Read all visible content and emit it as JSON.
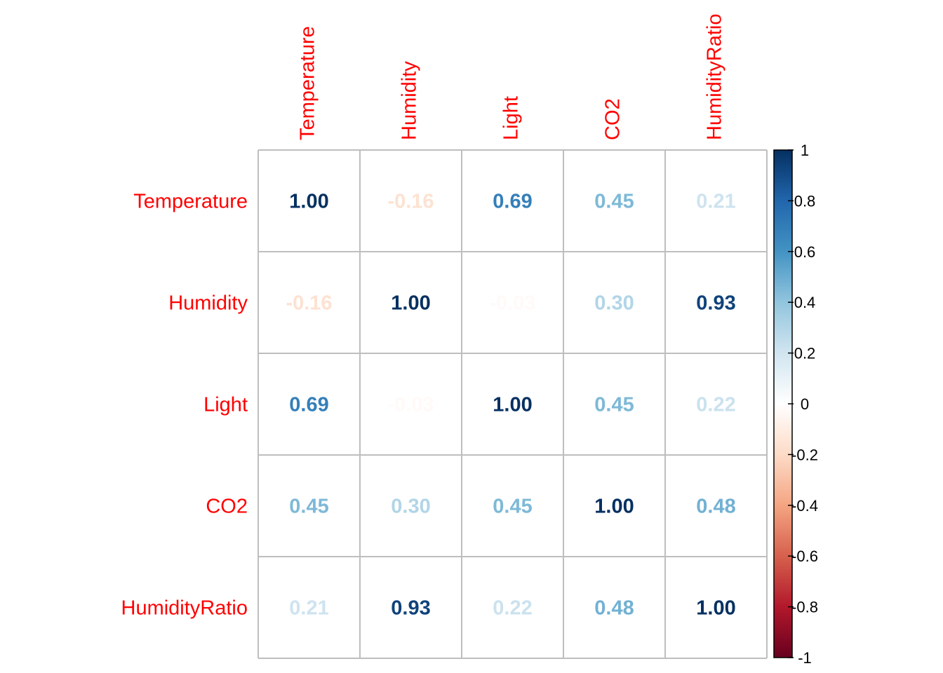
{
  "chart_data": {
    "type": "heatmap",
    "variables": [
      "Temperature",
      "Humidity",
      "Light",
      "CO2",
      "HumidityRatio"
    ],
    "matrix": [
      [
        1.0,
        -0.16,
        0.69,
        0.45,
        0.21
      ],
      [
        -0.16,
        1.0,
        -0.03,
        0.3,
        0.93
      ],
      [
        0.69,
        -0.03,
        1.0,
        0.45,
        0.22
      ],
      [
        0.45,
        0.3,
        0.45,
        1.0,
        0.48
      ],
      [
        0.21,
        0.93,
        0.22,
        0.48,
        1.0
      ]
    ],
    "value_labels": [
      [
        "1.00",
        "-0.16",
        "0.69",
        "0.45",
        "0.21"
      ],
      [
        "-0.16",
        "1.00",
        "-0.03",
        "0.30",
        "0.93"
      ],
      [
        "0.69",
        "-0.03",
        "1.00",
        "0.45",
        "0.22"
      ],
      [
        "0.45",
        "0.30",
        "0.45",
        "1.00",
        "0.48"
      ],
      [
        "0.21",
        "0.93",
        "0.22",
        "0.48",
        "1.00"
      ]
    ],
    "colorbar": {
      "range": [
        -1,
        1
      ],
      "ticks": [
        "1",
        "0.8",
        "0.6",
        "0.4",
        "0.2",
        "0",
        "-0.2",
        "-0.4",
        "-0.6",
        "-0.8",
        "-1"
      ],
      "tick_values": [
        1,
        0.8,
        0.6,
        0.4,
        0.2,
        0,
        -0.2,
        -0.4,
        -0.6,
        -0.8,
        -1
      ],
      "colors": [
        "#67001F",
        "#B2182B",
        "#D6604D",
        "#F4A582",
        "#FDDBC7",
        "#FFFFFF",
        "#D1E5F0",
        "#92C5DE",
        "#4393C3",
        "#2166AC",
        "#053061"
      ]
    },
    "label_color": "#FF0000",
    "grid_color": "#BEBEBE"
  }
}
